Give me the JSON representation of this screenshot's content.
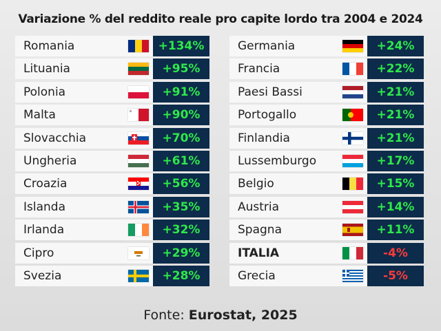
{
  "title": "Variazione % del reddito reale pro capite lordo tra 2004 e 2024",
  "source_label": "Fonte:",
  "source_name": "Eurostat, 2025",
  "chart_data": {
    "type": "table",
    "columns": [
      [
        {
          "country": "Romania",
          "value_label": "+134%",
          "value": 134,
          "flag": "ro"
        },
        {
          "country": "Lituania",
          "value_label": "+95%",
          "value": 95,
          "flag": "lt"
        },
        {
          "country": "Polonia",
          "value_label": "+91%",
          "value": 91,
          "flag": "pl"
        },
        {
          "country": "Malta",
          "value_label": "+90%",
          "value": 90,
          "flag": "mt"
        },
        {
          "country": "Slovacchia",
          "value_label": "+70%",
          "value": 70,
          "flag": "sk"
        },
        {
          "country": "Ungheria",
          "value_label": "+61%",
          "value": 61,
          "flag": "hu"
        },
        {
          "country": "Croazia",
          "value_label": "+56%",
          "value": 56,
          "flag": "hr"
        },
        {
          "country": "Islanda",
          "value_label": "+35%",
          "value": 35,
          "flag": "is"
        },
        {
          "country": "Irlanda",
          "value_label": "+32%",
          "value": 32,
          "flag": "ie"
        },
        {
          "country": "Cipro",
          "value_label": "+29%",
          "value": 29,
          "flag": "cy"
        },
        {
          "country": "Svezia",
          "value_label": "+28%",
          "value": 28,
          "flag": "se"
        }
      ],
      [
        {
          "country": "Germania",
          "value_label": "+24%",
          "value": 24,
          "flag": "de"
        },
        {
          "country": "Francia",
          "value_label": "+22%",
          "value": 22,
          "flag": "fr"
        },
        {
          "country": "Paesi Bassi",
          "value_label": "+21%",
          "value": 21,
          "flag": "nl"
        },
        {
          "country": "Portogallo",
          "value_label": "+21%",
          "value": 21,
          "flag": "pt"
        },
        {
          "country": "Finlandia",
          "value_label": "+21%",
          "value": 21,
          "flag": "fi"
        },
        {
          "country": "Lussemburgo",
          "value_label": "+17%",
          "value": 17,
          "flag": "lu"
        },
        {
          "country": "Belgio",
          "value_label": "+15%",
          "value": 15,
          "flag": "be"
        },
        {
          "country": "Austria",
          "value_label": "+14%",
          "value": 14,
          "flag": "at"
        },
        {
          "country": "Spagna",
          "value_label": "+11%",
          "value": 11,
          "flag": "es"
        },
        {
          "country": "ITALIA",
          "value_label": "-4%",
          "value": -4,
          "flag": "it",
          "bold": true
        },
        {
          "country": "Grecia",
          "value_label": "-5%",
          "value": -5,
          "flag": "gr"
        }
      ]
    ],
    "colors": {
      "positive": "#2ee84a",
      "negative": "#ff3b3b",
      "value_bg": "#0d2b4a",
      "name_bg": "#f7f7f7"
    }
  }
}
